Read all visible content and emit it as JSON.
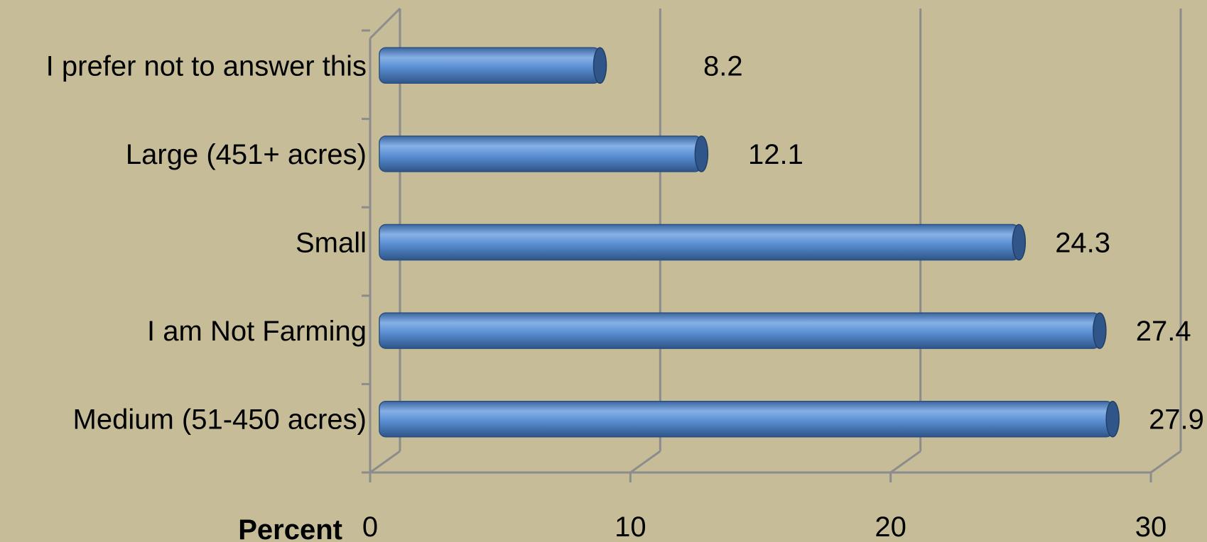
{
  "chart_data": {
    "type": "bar",
    "orientation": "horizontal",
    "style": "3d-cylinder",
    "categories": [
      "I prefer not to answer this",
      "Large (451+ acres)",
      "Small",
      "I am Not Farming",
      "Medium (51-450 acres)"
    ],
    "values": [
      8.2,
      12.1,
      24.3,
      27.4,
      27.9
    ],
    "value_labels": [
      "8.2",
      "12.1",
      "24.3",
      "27.4",
      "27.9"
    ],
    "xlabel": "Percent",
    "xlim": [
      0,
      30
    ],
    "x_ticks": [
      0,
      10,
      20,
      30
    ],
    "x_tick_labels": [
      "0",
      "10",
      "20",
      "30"
    ],
    "grid": true,
    "legend": "none",
    "colors": {
      "background": "#c6bd98",
      "bar": "#4f81bd",
      "bar_light": "#86b0e6",
      "bar_dark": "#2f5589",
      "grid": "#8c8c8c"
    }
  }
}
